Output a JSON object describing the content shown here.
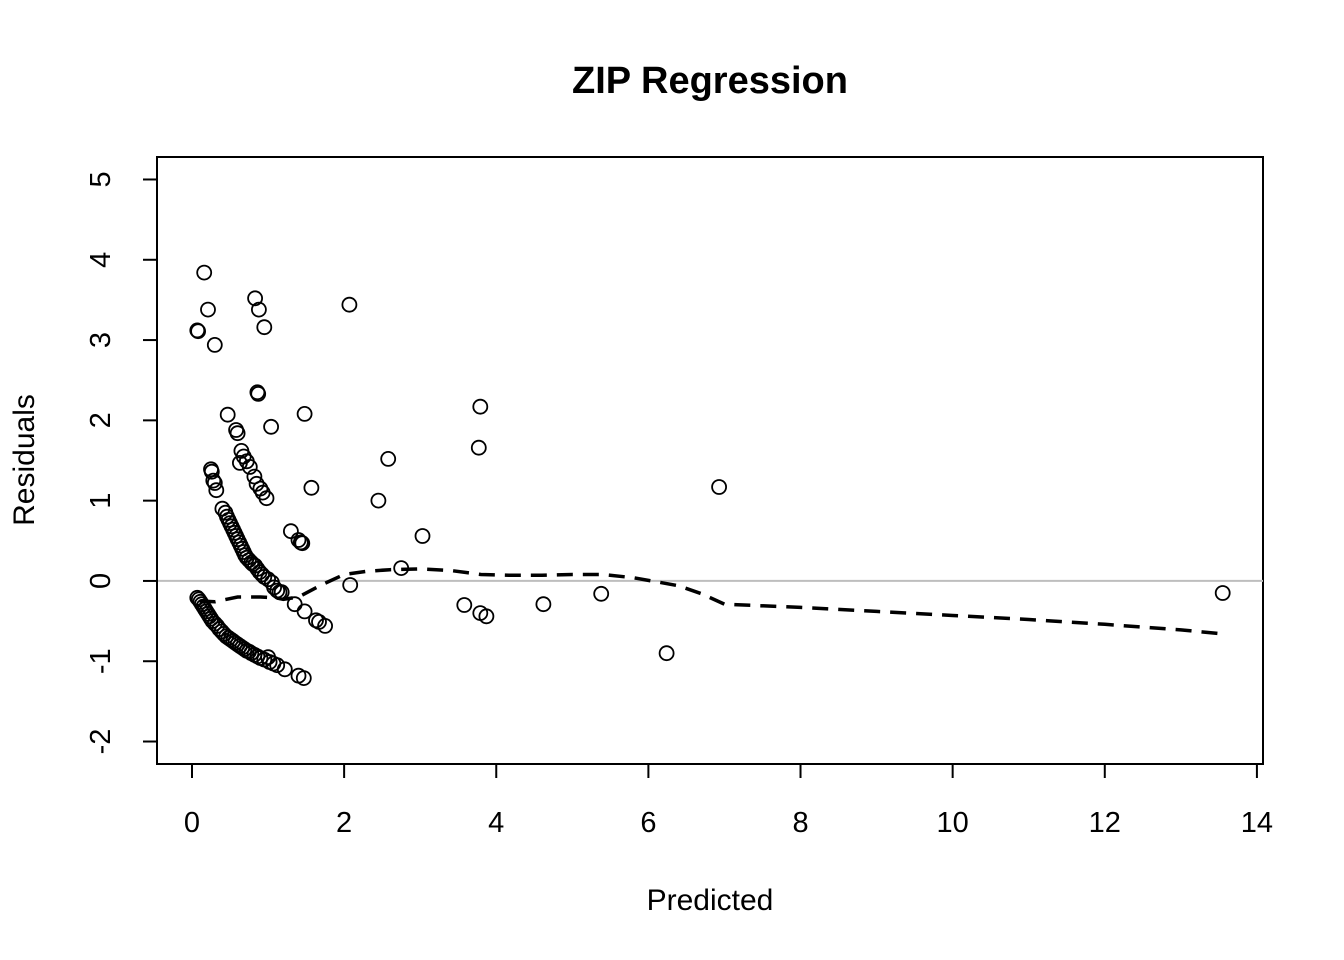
{
  "chart_data": {
    "type": "scatter",
    "title": "ZIP Regression",
    "xlabel": "Predicted",
    "ylabel": "Residuals",
    "xlim": [
      -0.46,
      14.08
    ],
    "ylim": [
      -2.28,
      5.28
    ],
    "xticks": [
      0,
      2,
      4,
      6,
      8,
      10,
      12,
      14
    ],
    "yticks": [
      -2,
      -1,
      0,
      1,
      2,
      3,
      4,
      5
    ],
    "grid": false,
    "reference_line": {
      "y": 0,
      "color": "#bebebe"
    },
    "colors": {
      "points": "#000000",
      "smooth": "#000000",
      "reference": "#bebebe"
    },
    "points": [
      [
        0.16,
        3.84
      ],
      [
        0.21,
        3.38
      ],
      [
        0.07,
        3.12
      ],
      [
        0.08,
        3.11
      ],
      [
        0.3,
        2.94
      ],
      [
        0.83,
        3.52
      ],
      [
        0.88,
        3.38
      ],
      [
        0.95,
        3.16
      ],
      [
        2.07,
        3.44
      ],
      [
        0.86,
        2.35
      ],
      [
        0.87,
        2.33
      ],
      [
        0.47,
        2.07
      ],
      [
        1.48,
        2.08
      ],
      [
        0.58,
        1.88
      ],
      [
        0.6,
        1.84
      ],
      [
        1.04,
        1.92
      ],
      [
        3.79,
        2.17
      ],
      [
        3.77,
        1.66
      ],
      [
        2.58,
        1.52
      ],
      [
        0.25,
        1.39
      ],
      [
        0.26,
        1.36
      ],
      [
        0.28,
        1.25
      ],
      [
        0.3,
        1.22
      ],
      [
        0.32,
        1.13
      ],
      [
        0.65,
        1.62
      ],
      [
        0.63,
        1.47
      ],
      [
        0.68,
        1.55
      ],
      [
        0.72,
        1.49
      ],
      [
        0.76,
        1.42
      ],
      [
        0.82,
        1.3
      ],
      [
        0.85,
        1.21
      ],
      [
        0.9,
        1.15
      ],
      [
        0.93,
        1.1
      ],
      [
        0.98,
        1.03
      ],
      [
        1.57,
        1.16
      ],
      [
        2.45,
        1.0
      ],
      [
        6.93,
        1.17
      ],
      [
        3.03,
        0.56
      ],
      [
        1.3,
        0.62
      ],
      [
        1.4,
        0.51
      ],
      [
        1.43,
        0.48
      ],
      [
        1.45,
        0.47
      ],
      [
        0.4,
        0.9
      ],
      [
        0.44,
        0.85
      ],
      [
        0.46,
        0.8
      ],
      [
        0.48,
        0.76
      ],
      [
        0.5,
        0.72
      ],
      [
        0.52,
        0.68
      ],
      [
        0.54,
        0.64
      ],
      [
        0.56,
        0.6
      ],
      [
        0.58,
        0.56
      ],
      [
        0.6,
        0.52
      ],
      [
        0.62,
        0.48
      ],
      [
        0.64,
        0.44
      ],
      [
        0.66,
        0.4
      ],
      [
        0.68,
        0.36
      ],
      [
        0.7,
        0.32
      ],
      [
        0.72,
        0.29
      ],
      [
        0.75,
        0.26
      ],
      [
        0.78,
        0.23
      ],
      [
        0.8,
        0.21
      ],
      [
        0.83,
        0.19
      ],
      [
        0.86,
        0.15
      ],
      [
        0.89,
        0.11
      ],
      [
        0.92,
        0.08
      ],
      [
        0.95,
        0.05
      ],
      [
        1.0,
        0.02
      ],
      [
        1.05,
        -0.02
      ],
      [
        1.08,
        -0.08
      ],
      [
        1.12,
        -0.12
      ],
      [
        1.15,
        -0.14
      ],
      [
        1.18,
        -0.14
      ],
      [
        2.75,
        0.16
      ],
      [
        2.08,
        -0.05
      ],
      [
        1.35,
        -0.29
      ],
      [
        1.48,
        -0.38
      ],
      [
        1.63,
        -0.49
      ],
      [
        1.67,
        -0.51
      ],
      [
        1.75,
        -0.56
      ],
      [
        3.58,
        -0.3
      ],
      [
        3.79,
        -0.4
      ],
      [
        3.87,
        -0.44
      ],
      [
        4.62,
        -0.29
      ],
      [
        5.38,
        -0.16
      ],
      [
        6.24,
        -0.9
      ],
      [
        13.55,
        -0.15
      ],
      [
        0.07,
        -0.21
      ],
      [
        0.09,
        -0.23
      ],
      [
        0.11,
        -0.26
      ],
      [
        0.13,
        -0.29
      ],
      [
        0.15,
        -0.32
      ],
      [
        0.17,
        -0.35
      ],
      [
        0.19,
        -0.38
      ],
      [
        0.21,
        -0.41
      ],
      [
        0.23,
        -0.44
      ],
      [
        0.25,
        -0.47
      ],
      [
        0.27,
        -0.5
      ],
      [
        0.3,
        -0.53
      ],
      [
        0.33,
        -0.56
      ],
      [
        0.36,
        -0.6
      ],
      [
        0.39,
        -0.63
      ],
      [
        0.42,
        -0.66
      ],
      [
        0.45,
        -0.69
      ],
      [
        0.48,
        -0.71
      ],
      [
        0.51,
        -0.73
      ],
      [
        0.54,
        -0.75
      ],
      [
        0.57,
        -0.77
      ],
      [
        0.6,
        -0.79
      ],
      [
        0.63,
        -0.81
      ],
      [
        0.66,
        -0.83
      ],
      [
        0.69,
        -0.85
      ],
      [
        0.72,
        -0.87
      ],
      [
        0.75,
        -0.88
      ],
      [
        0.78,
        -0.9
      ],
      [
        0.82,
        -0.92
      ],
      [
        0.86,
        -0.94
      ],
      [
        0.9,
        -0.96
      ],
      [
        0.95,
        -0.98
      ],
      [
        1.0,
        -0.95
      ],
      [
        1.02,
        -1.01
      ],
      [
        1.07,
        -1.03
      ],
      [
        1.12,
        -1.05
      ],
      [
        1.22,
        -1.1
      ],
      [
        1.4,
        -1.18
      ],
      [
        1.47,
        -1.21
      ]
    ],
    "smooth_line": [
      [
        0.1,
        -0.25
      ],
      [
        0.3,
        -0.26
      ],
      [
        0.6,
        -0.2
      ],
      [
        0.9,
        -0.2
      ],
      [
        1.1,
        -0.21
      ],
      [
        1.2,
        -0.23
      ],
      [
        1.4,
        -0.2
      ],
      [
        1.7,
        -0.05
      ],
      [
        2.0,
        0.08
      ],
      [
        2.3,
        0.12
      ],
      [
        2.6,
        0.14
      ],
      [
        3.0,
        0.15
      ],
      [
        3.4,
        0.13
      ],
      [
        3.8,
        0.08
      ],
      [
        4.2,
        0.07
      ],
      [
        4.6,
        0.07
      ],
      [
        5.0,
        0.08
      ],
      [
        5.4,
        0.08
      ],
      [
        5.8,
        0.04
      ],
      [
        6.1,
        -0.01
      ],
      [
        6.4,
        -0.06
      ],
      [
        6.7,
        -0.16
      ],
      [
        7.0,
        -0.29
      ],
      [
        8.0,
        -0.33
      ],
      [
        9.0,
        -0.38
      ],
      [
        10.0,
        -0.43
      ],
      [
        11.0,
        -0.48
      ],
      [
        12.0,
        -0.54
      ],
      [
        13.0,
        -0.61
      ],
      [
        13.55,
        -0.66
      ]
    ]
  }
}
